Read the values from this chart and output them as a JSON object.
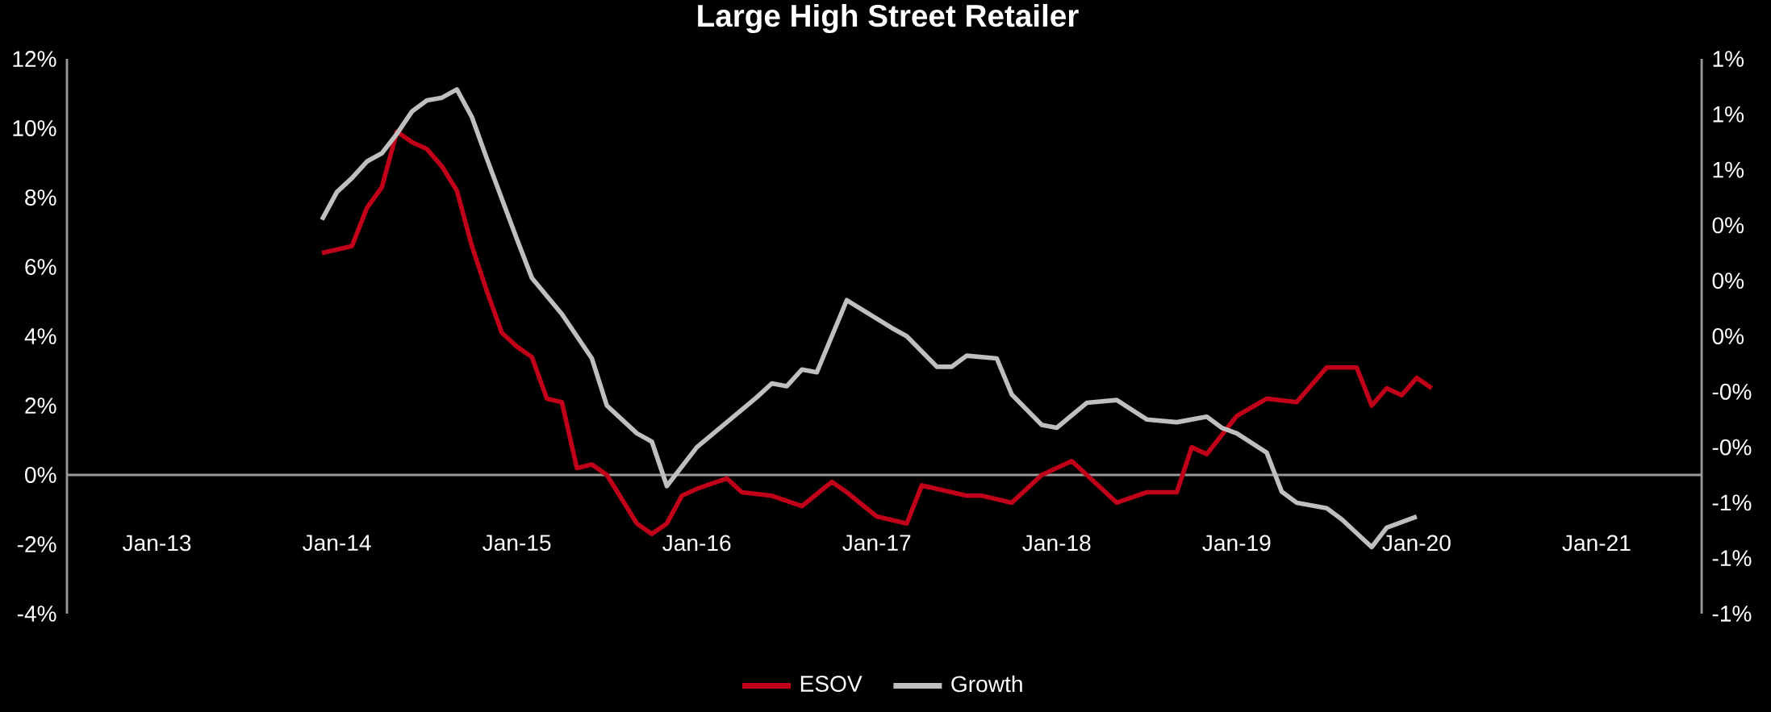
{
  "chart_data": {
    "type": "line",
    "title": "Large High Street Retailer",
    "xlim": [
      "2012-07",
      "2021-08"
    ],
    "xticks": [
      {
        "value": "2013-01",
        "label": "Jan-13"
      },
      {
        "value": "2014-01",
        "label": "Jan-14"
      },
      {
        "value": "2015-01",
        "label": "Jan-15"
      },
      {
        "value": "2016-01",
        "label": "Jan-16"
      },
      {
        "value": "2017-01",
        "label": "Jan-17"
      },
      {
        "value": "2018-01",
        "label": "Jan-18"
      },
      {
        "value": "2019-01",
        "label": "Jan-19"
      },
      {
        "value": "2020-01",
        "label": "Jan-20"
      },
      {
        "value": "2021-01",
        "label": "Jan-21"
      }
    ],
    "ylim": [
      -4,
      12
    ],
    "yticks": [
      {
        "value": -4,
        "label": "-4%"
      },
      {
        "value": -2,
        "label": "-2%"
      },
      {
        "value": 0,
        "label": "0%"
      },
      {
        "value": 2,
        "label": "2%"
      },
      {
        "value": 4,
        "label": "4%"
      },
      {
        "value": 6,
        "label": "6%"
      },
      {
        "value": 8,
        "label": "8%"
      },
      {
        "value": 10,
        "label": "10%"
      },
      {
        "value": 12,
        "label": "12%"
      }
    ],
    "y2lim": [
      -1,
      1
    ],
    "y2ticks": [
      {
        "value": -1,
        "label": "-1%"
      },
      {
        "value": -0.8,
        "label": "-1%"
      },
      {
        "value": -0.6,
        "label": "-1%"
      },
      {
        "value": -0.4,
        "label": "-0%"
      },
      {
        "value": -0.2,
        "label": "-0%"
      },
      {
        "value": 0,
        "label": "0%"
      },
      {
        "value": 0.2,
        "label": "0%"
      },
      {
        "value": 0.4,
        "label": "0%"
      },
      {
        "value": 0.6,
        "label": "1%"
      },
      {
        "value": 0.8,
        "label": "1%"
      },
      {
        "value": 1,
        "label": "1%"
      }
    ],
    "legend": "bottom",
    "marker": "none",
    "line_style": "solid",
    "series": [
      {
        "name": "ESOV",
        "color": "#c00018",
        "x": [
          "2013-12",
          "2014-02",
          "2014-03",
          "2014-04",
          "2014-05",
          "2014-06",
          "2014-07",
          "2014-08",
          "2014-09",
          "2014-10",
          "2014-11",
          "2014-12",
          "2015-01",
          "2015-02",
          "2015-03",
          "2015-04",
          "2015-05",
          "2015-06",
          "2015-07",
          "2015-08",
          "2015-09",
          "2015-10",
          "2015-11",
          "2015-12",
          "2016-01",
          "2016-03",
          "2016-04",
          "2016-06",
          "2016-08",
          "2016-10",
          "2016-11",
          "2017-01",
          "2017-03",
          "2017-04",
          "2017-07",
          "2017-08",
          "2017-10",
          "2017-12",
          "2018-02",
          "2018-05",
          "2018-07",
          "2018-09",
          "2018-10",
          "2018-11",
          "2019-01",
          "2019-03",
          "2019-05",
          "2019-07",
          "2019-09",
          "2019-10",
          "2019-11",
          "2019-12",
          "2020-01",
          "2020-02"
        ],
        "values": [
          6.4,
          6.6,
          7.7,
          8.3,
          9.9,
          9.6,
          9.4,
          8.9,
          8.2,
          6.6,
          5.3,
          4.1,
          3.7,
          3.4,
          2.2,
          2.1,
          0.2,
          0.3,
          0.0,
          -0.7,
          -1.4,
          -1.7,
          -1.4,
          -0.6,
          -0.4,
          -0.1,
          -0.5,
          -0.6,
          -0.9,
          -0.2,
          -0.5,
          -1.2,
          -1.4,
          -0.3,
          -0.6,
          -0.6,
          -0.8,
          0.0,
          0.4,
          -0.8,
          -0.5,
          -0.5,
          0.8,
          0.6,
          1.7,
          2.2,
          2.1,
          3.1,
          3.1,
          2.0,
          2.5,
          2.3,
          2.8,
          2.5
        ]
      },
      {
        "name": "Growth",
        "color": "#bfbfbf",
        "axis": "y2",
        "x": [
          "2013-12",
          "2014-01",
          "2014-02",
          "2014-03",
          "2014-04",
          "2014-05",
          "2014-06",
          "2014-07",
          "2014-08",
          "2014-09",
          "2014-10",
          "2014-11",
          "2015-01",
          "2015-02",
          "2015-04",
          "2015-06",
          "2015-07",
          "2015-09",
          "2015-10",
          "2015-11",
          "2016-01",
          "2016-03",
          "2016-05",
          "2016-06",
          "2016-07",
          "2016-08",
          "2016-09",
          "2016-11",
          "2017-02",
          "2017-03",
          "2017-05",
          "2017-06",
          "2017-07",
          "2017-09",
          "2017-10",
          "2017-12",
          "2018-01",
          "2018-03",
          "2018-05",
          "2018-07",
          "2018-09",
          "2018-11",
          "2018-12",
          "2019-01",
          "2019-03",
          "2019-04",
          "2019-05",
          "2019-07",
          "2019-08",
          "2019-10",
          "2019-11",
          "2020-01"
        ],
        "values": [
          0.42,
          0.52,
          0.57,
          0.63,
          0.66,
          0.73,
          0.81,
          0.85,
          0.86,
          0.89,
          0.79,
          0.64,
          0.35,
          0.21,
          0.08,
          -0.08,
          -0.25,
          -0.35,
          -0.38,
          -0.54,
          -0.4,
          -0.31,
          -0.22,
          -0.17,
          -0.18,
          -0.12,
          -0.13,
          0.13,
          0.03,
          0.0,
          -0.11,
          -0.11,
          -0.07,
          -0.08,
          -0.21,
          -0.32,
          -0.33,
          -0.24,
          -0.23,
          -0.3,
          -0.31,
          -0.29,
          -0.33,
          -0.35,
          -0.42,
          -0.56,
          -0.6,
          -0.62,
          -0.66,
          -0.76,
          -0.69,
          -0.65
        ]
      }
    ]
  }
}
